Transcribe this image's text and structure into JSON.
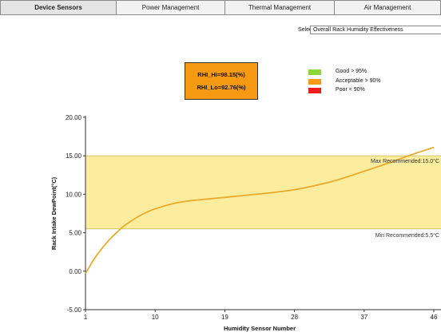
{
  "tabs": [
    {
      "label": "Device Sensors",
      "active": true
    },
    {
      "label": "Power Management",
      "active": false
    },
    {
      "label": "Thermal Management",
      "active": false
    },
    {
      "label": "Air Management",
      "active": false
    }
  ],
  "select": {
    "label": "Select",
    "value": "Overall Rack Humidity Effectiveness"
  },
  "rhi": {
    "hi": "RHI_Hi=98.15(%)",
    "lo": "RHI_Lo=92.76(%)",
    "box_color": "#f59a12"
  },
  "legend": [
    {
      "label": "Good > 95%",
      "color": "#8fd63a"
    },
    {
      "label": "Acceptable > 90%",
      "color": "#f59a12"
    },
    {
      "label": "Poor < 90%",
      "color": "#ee1c1c"
    }
  ],
  "chart_data": {
    "type": "line",
    "xlabel": "Humidity Sensor Number",
    "ylabel": "Rack Intake DewPoint(°C)",
    "xlim": [
      1,
      46
    ],
    "ylim": [
      -5,
      20
    ],
    "x_ticks": [
      1,
      10,
      19,
      28,
      37,
      46
    ],
    "y_ticks": [
      {
        "value": 20,
        "label": "20.00"
      },
      {
        "value": 15,
        "label": "15.00"
      },
      {
        "value": 10,
        "label": "10.00"
      },
      {
        "value": 5,
        "label": "5.00"
      },
      {
        "value": 0,
        "label": "0.00"
      },
      {
        "value": -5,
        "label": "-5.00"
      }
    ],
    "band": {
      "min": 5.5,
      "max": 15.0,
      "color": "#fbec9e",
      "line_color": "#d4c46a"
    },
    "annotations": {
      "max_label": "Max Recommended:15.0°C",
      "min_label": "Min Recommended:5.5°C"
    },
    "series": [
      {
        "color": "#eaaa2a",
        "x": [
          1,
          2,
          3,
          4,
          5,
          6,
          7,
          8,
          9,
          10,
          12,
          14,
          16,
          19,
          22,
          25,
          28,
          31,
          34,
          37,
          40,
          43,
          46
        ],
        "y": [
          -0.3,
          1.4,
          2.8,
          4.0,
          5.0,
          5.9,
          6.6,
          7.2,
          7.7,
          8.1,
          8.7,
          9.1,
          9.3,
          9.6,
          9.9,
          10.2,
          10.6,
          11.2,
          12.0,
          13.0,
          14.0,
          15.1,
          16.1
        ]
      }
    ]
  }
}
